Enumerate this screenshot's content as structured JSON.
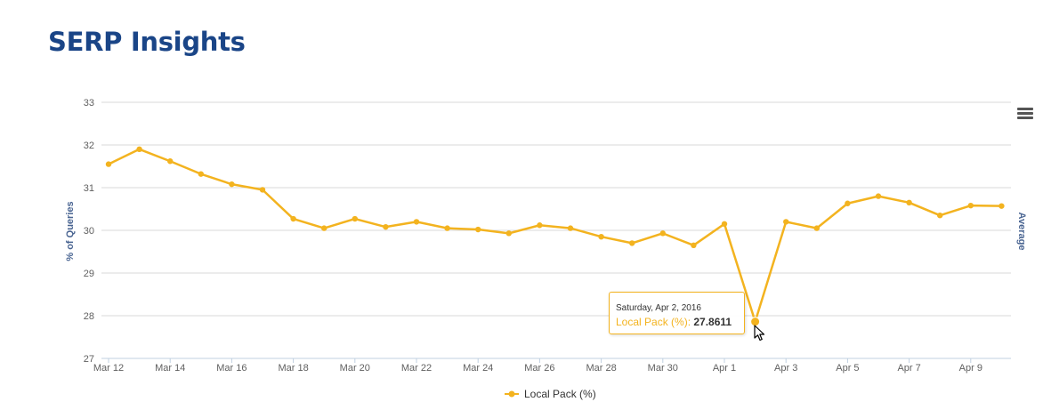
{
  "page": {
    "title": "SERP Insights"
  },
  "chart_data": {
    "type": "line",
    "title": "",
    "x": [
      "2016-03-12",
      "2016-03-13",
      "2016-03-14",
      "2016-03-15",
      "2016-03-16",
      "2016-03-17",
      "2016-03-18",
      "2016-03-19",
      "2016-03-20",
      "2016-03-21",
      "2016-03-22",
      "2016-03-23",
      "2016-03-24",
      "2016-03-25",
      "2016-03-26",
      "2016-03-27",
      "2016-03-28",
      "2016-03-29",
      "2016-03-30",
      "2016-03-31",
      "2016-04-01",
      "2016-04-02",
      "2016-04-03",
      "2016-04-04",
      "2016-04-05",
      "2016-04-06",
      "2016-04-07",
      "2016-04-08",
      "2016-04-09",
      "2016-04-10"
    ],
    "x_tick_labels": [
      "Mar 12",
      "Mar 14",
      "Mar 16",
      "Mar 18",
      "Mar 20",
      "Mar 22",
      "Mar 24",
      "Mar 26",
      "Mar 28",
      "Mar 30",
      "Apr 1",
      "Apr 3",
      "Apr 5",
      "Apr 7",
      "Apr 9"
    ],
    "x_tick_dates": [
      "2016-03-12",
      "2016-03-14",
      "2016-03-16",
      "2016-03-18",
      "2016-03-20",
      "2016-03-22",
      "2016-03-24",
      "2016-03-26",
      "2016-03-28",
      "2016-03-30",
      "2016-04-01",
      "2016-04-03",
      "2016-04-05",
      "2016-04-07",
      "2016-04-09"
    ],
    "ylabel": "% of Queries",
    "ylabel_right": "Average",
    "ylim": [
      27,
      33
    ],
    "y_ticks": [
      27,
      28,
      29,
      30,
      31,
      32,
      33
    ],
    "grid": true,
    "legend_position": "bottom-center",
    "series": [
      {
        "name": "Local Pack (%)",
        "color": "#f3b31f",
        "values": [
          31.55,
          31.9,
          31.62,
          31.32,
          31.08,
          30.95,
          30.27,
          30.05,
          30.27,
          30.08,
          30.2,
          30.05,
          30.02,
          29.93,
          30.12,
          30.05,
          29.85,
          29.7,
          29.93,
          29.65,
          30.15,
          27.8611,
          30.2,
          30.05,
          30.63,
          30.8,
          30.65,
          30.35,
          30.58,
          30.57
        ]
      }
    ],
    "tooltip": {
      "date_label": "Saturday, Apr 2, 2016",
      "series_label": "Local Pack (%)",
      "value": "27.8611"
    }
  }
}
